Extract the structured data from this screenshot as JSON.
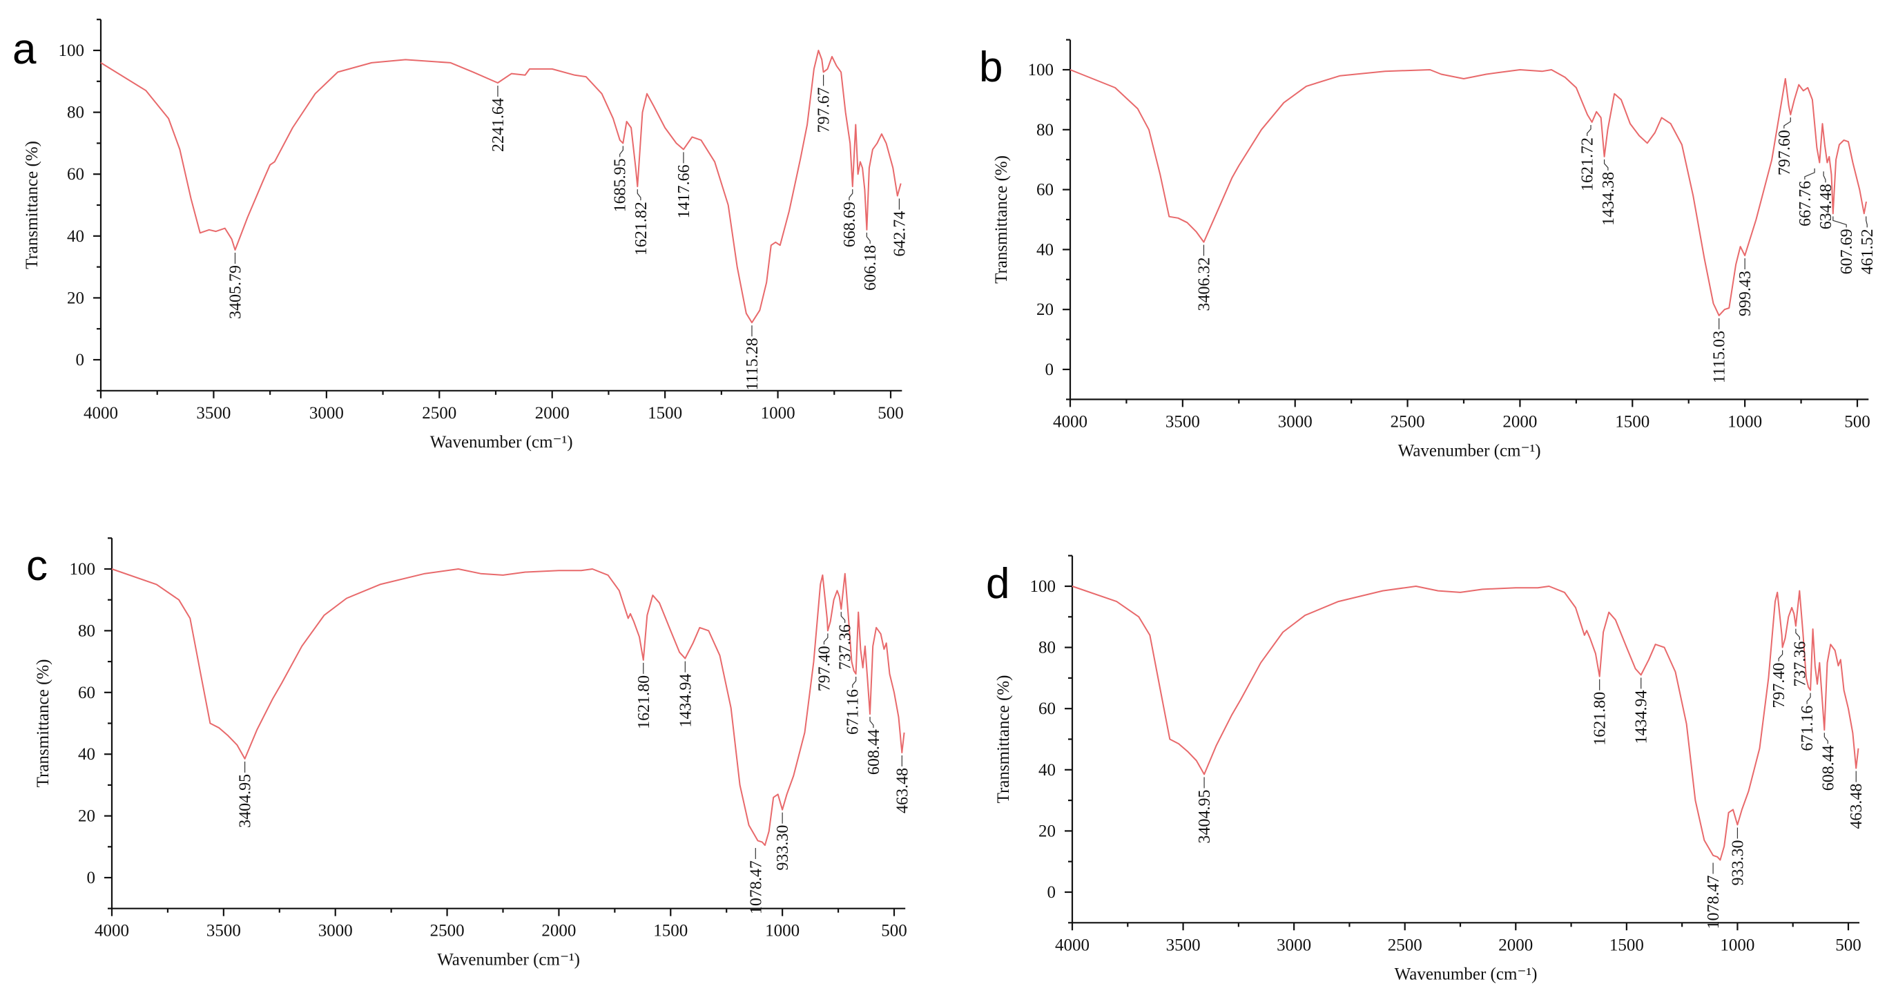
{
  "style": {
    "line_color": "#e8696b",
    "text_color": "#111111"
  },
  "chart_data": [
    {
      "type": "line",
      "panel": "a",
      "xlabel": "Wavenumber (cm⁻¹)",
      "ylabel": "Transmittance (%)",
      "xlim": [
        4000,
        450
      ],
      "ylim": [
        -10,
        110
      ],
      "xticks": [
        4000,
        3500,
        3000,
        2500,
        2000,
        1500,
        1000,
        500
      ],
      "yticks": [
        0,
        20,
        40,
        60,
        80,
        100
      ],
      "grid": false,
      "series": [
        {
          "name": "a",
          "x": [
            4000,
            3800,
            3700,
            3650,
            3600,
            3560,
            3520,
            3490,
            3450,
            3420,
            3405,
            3350,
            3280,
            3250,
            3230,
            3150,
            3050,
            2950,
            2800,
            2650,
            2450,
            2350,
            2241,
            2180,
            2120,
            2100,
            2000,
            1900,
            1850,
            1780,
            1730,
            1700,
            1686,
            1670,
            1650,
            1630,
            1622,
            1600,
            1580,
            1550,
            1500,
            1450,
            1418,
            1380,
            1340,
            1280,
            1220,
            1180,
            1140,
            1115,
            1080,
            1050,
            1030,
            1010,
            990,
            950,
            900,
            870,
            840,
            820,
            805,
            798,
            780,
            760,
            740,
            720,
            700,
            680,
            669,
            655,
            645,
            635,
            625,
            615,
            606,
            595,
            580,
            560,
            540,
            520,
            490,
            470,
            455
          ],
          "y": [
            96,
            87,
            78,
            68,
            52,
            41,
            42,
            41.5,
            42.5,
            39,
            35.5,
            46,
            58,
            63,
            64,
            75,
            86,
            93,
            96,
            97,
            96,
            93,
            89.5,
            92.5,
            92,
            94,
            94,
            92,
            91.5,
            86,
            78,
            71,
            70,
            77,
            75,
            62,
            56,
            80,
            86,
            82,
            75,
            70,
            68,
            72,
            71,
            64,
            50,
            30,
            15,
            12,
            16,
            25,
            37,
            38,
            37,
            48,
            65,
            76,
            94,
            100,
            97,
            93,
            94,
            98,
            95,
            93,
            80,
            70,
            56,
            76,
            60,
            64,
            62,
            55,
            42,
            62,
            68,
            70,
            73,
            70,
            62,
            53,
            57
          ]
        }
      ],
      "annotations": [
        {
          "label": "3405.79",
          "x": 3405,
          "y": 35.5
        },
        {
          "label": "2241.64",
          "x": 2241,
          "y": 89.5
        },
        {
          "label": "1685.95",
          "x": 1686,
          "y": 70
        },
        {
          "label": "1621.82",
          "x": 1622,
          "y": 56
        },
        {
          "label": "1417.66",
          "x": 1418,
          "y": 68
        },
        {
          "label": "1115.28",
          "x": 1115,
          "y": 12
        },
        {
          "label": "797.67",
          "x": 798,
          "y": 93
        },
        {
          "label": "668.69",
          "x": 669,
          "y": 56
        },
        {
          "label": "606.18",
          "x": 606,
          "y": 42
        },
        {
          "label": "642.74",
          "x": 462,
          "y": 53
        }
      ]
    },
    {
      "type": "line",
      "panel": "b",
      "xlabel": "Wavenumber (cm⁻¹)",
      "ylabel": "Transmittance (%)",
      "xlim": [
        4000,
        450
      ],
      "ylim": [
        -10,
        110
      ],
      "xticks": [
        4000,
        3500,
        3000,
        2500,
        2000,
        1500,
        1000,
        500
      ],
      "yticks": [
        0,
        20,
        40,
        60,
        80,
        100
      ],
      "grid": false,
      "series": [
        {
          "name": "b",
          "x": [
            4000,
            3800,
            3700,
            3650,
            3600,
            3560,
            3520,
            3480,
            3440,
            3406,
            3350,
            3280,
            3250,
            3150,
            3050,
            2950,
            2800,
            2600,
            2400,
            2350,
            2250,
            2150,
            2100,
            2000,
            1900,
            1860,
            1800,
            1750,
            1700,
            1680,
            1660,
            1640,
            1625,
            1610,
            1580,
            1550,
            1510,
            1470,
            1434,
            1400,
            1370,
            1330,
            1280,
            1230,
            1180,
            1140,
            1115,
            1090,
            1070,
            1040,
            1020,
            1000,
            950,
            880,
            840,
            820,
            805,
            797,
            780,
            760,
            740,
            720,
            700,
            680,
            668,
            655,
            645,
            634,
            625,
            615,
            608,
            595,
            580,
            560,
            540,
            520,
            490,
            470,
            460
          ],
          "y": [
            100,
            94,
            87,
            80,
            65,
            51,
            50.5,
            49,
            46,
            42.5,
            52,
            64,
            68,
            80,
            89,
            94.5,
            98,
            99.5,
            100,
            98.5,
            97,
            98.5,
            99,
            100,
            99.5,
            100,
            97.5,
            94,
            85,
            82.5,
            86,
            84,
            71,
            80,
            92,
            90,
            82,
            78,
            75.5,
            79,
            84,
            82,
            75,
            58,
            37,
            22,
            18,
            20,
            20.5,
            35,
            41,
            38,
            50,
            70,
            88,
            97,
            88,
            85,
            90,
            95,
            93,
            94,
            90,
            74,
            69,
            82,
            75,
            69,
            71,
            65,
            52,
            70,
            75,
            76.5,
            76,
            69,
            60,
            52,
            56
          ]
        }
      ],
      "annotations": [
        {
          "label": "3406.32",
          "x": 3406,
          "y": 42.5
        },
        {
          "label": "1621.72",
          "x": 1685,
          "y": 82.5
        },
        {
          "label": "1434.38",
          "x": 1625,
          "y": 71
        },
        {
          "label": "1115.03",
          "x": 1115,
          "y": 18
        },
        {
          "label": "999.43",
          "x": 1000,
          "y": 38
        },
        {
          "label": "797.60",
          "x": 797,
          "y": 85
        },
        {
          "label": "667.76",
          "x": 690,
          "y": 68
        },
        {
          "label": "634.48",
          "x": 650,
          "y": 67
        },
        {
          "label": "607.69",
          "x": 608,
          "y": 52
        },
        {
          "label": "461.52",
          "x": 461,
          "y": 52
        }
      ]
    },
    {
      "type": "line",
      "panel": "c",
      "xlabel": "Wavenumber (cm⁻¹)",
      "ylabel": "Transmittance (%)",
      "xlim": [
        4000,
        450
      ],
      "ylim": [
        -10,
        110
      ],
      "xticks": [
        4000,
        3500,
        3000,
        2500,
        2000,
        1500,
        1000,
        500
      ],
      "yticks": [
        0,
        20,
        40,
        60,
        80,
        100
      ],
      "grid": false,
      "series": [
        {
          "name": "c",
          "x": [
            4000,
            3800,
            3700,
            3650,
            3600,
            3560,
            3520,
            3480,
            3440,
            3405,
            3350,
            3280,
            3240,
            3150,
            3050,
            2950,
            2800,
            2600,
            2450,
            2350,
            2250,
            2150,
            2000,
            1900,
            1850,
            1780,
            1730,
            1690,
            1680,
            1665,
            1640,
            1622,
            1605,
            1580,
            1550,
            1500,
            1460,
            1435,
            1400,
            1370,
            1330,
            1280,
            1230,
            1190,
            1150,
            1110,
            1090,
            1078,
            1060,
            1040,
            1020,
            1000,
            980,
            950,
            900,
            860,
            830,
            820,
            800,
            797,
            785,
            770,
            755,
            745,
            737,
            720,
            705,
            690,
            680,
            671,
            660,
            650,
            640,
            630,
            620,
            608,
            595,
            580,
            560,
            545,
            535,
            520,
            500,
            480,
            465,
            455
          ],
          "y": [
            100,
            95,
            90,
            84,
            65,
            50,
            48.5,
            46,
            43,
            38.5,
            48,
            58,
            63,
            75,
            85,
            90.5,
            95,
            98.5,
            100,
            98.5,
            98,
            99,
            99.5,
            99.5,
            100,
            98,
            93,
            84,
            85.5,
            83,
            78,
            70.5,
            85,
            91.5,
            89,
            80,
            73,
            71,
            76,
            81,
            80,
            72,
            55,
            30,
            17,
            12,
            11.5,
            10.5,
            15,
            26,
            27,
            22,
            27,
            33,
            47,
            70,
            95,
            98,
            84,
            80,
            83,
            90,
            93,
            91,
            87,
            98.5,
            85,
            70,
            67,
            66,
            86,
            74,
            68,
            75,
            65,
            53,
            75,
            81,
            79,
            74,
            76,
            66,
            60,
            52,
            40.5,
            47
          ]
        }
      ],
      "annotations": [
        {
          "label": "3404.95",
          "x": 3405,
          "y": 38.5
        },
        {
          "label": "1621.80",
          "x": 1622,
          "y": 70.5
        },
        {
          "label": "1434.94",
          "x": 1435,
          "y": 71
        },
        {
          "label": "1078.47",
          "x": 1120,
          "y": 10.5
        },
        {
          "label": "933.30",
          "x": 1000,
          "y": 22
        },
        {
          "label": "797.40",
          "x": 797,
          "y": 80
        },
        {
          "label": "737.36",
          "x": 737,
          "y": 87
        },
        {
          "label": "671.16",
          "x": 671,
          "y": 66
        },
        {
          "label": "608.44",
          "x": 608,
          "y": 53
        },
        {
          "label": "463.48",
          "x": 465,
          "y": 40.5
        }
      ]
    },
    {
      "type": "line",
      "panel": "d",
      "xlabel": "Wavenumber (cm⁻¹)",
      "ylabel": "Transmittance (%)",
      "xlim": [
        4000,
        450
      ],
      "ylim": [
        -10,
        110
      ],
      "xticks": [
        4000,
        3500,
        3000,
        2500,
        2000,
        1500,
        1000,
        500
      ],
      "yticks": [
        0,
        20,
        40,
        60,
        80,
        100
      ],
      "grid": false,
      "series": [
        {
          "name": "d",
          "x": [
            4000,
            3800,
            3700,
            3650,
            3600,
            3560,
            3520,
            3480,
            3440,
            3405,
            3350,
            3280,
            3240,
            3150,
            3050,
            2950,
            2800,
            2600,
            2450,
            2350,
            2250,
            2150,
            2000,
            1900,
            1850,
            1780,
            1730,
            1690,
            1680,
            1665,
            1640,
            1622,
            1605,
            1580,
            1550,
            1500,
            1460,
            1435,
            1400,
            1370,
            1330,
            1280,
            1230,
            1190,
            1150,
            1110,
            1090,
            1078,
            1060,
            1040,
            1020,
            1000,
            980,
            950,
            900,
            860,
            830,
            820,
            800,
            797,
            785,
            770,
            755,
            745,
            737,
            720,
            705,
            690,
            680,
            671,
            660,
            650,
            640,
            630,
            620,
            608,
            595,
            580,
            560,
            545,
            535,
            520,
            500,
            480,
            465,
            455
          ],
          "y": [
            100,
            95,
            90,
            84,
            65,
            50,
            48.5,
            46,
            43,
            38.5,
            48,
            58,
            63,
            75,
            85,
            90.5,
            95,
            98.5,
            100,
            98.5,
            98,
            99,
            99.5,
            99.5,
            100,
            98,
            93,
            84,
            85.5,
            83,
            78,
            70.5,
            85,
            91.5,
            89,
            80,
            73,
            71,
            76,
            81,
            80,
            72,
            55,
            30,
            17,
            12,
            11.5,
            10.5,
            15,
            26,
            27,
            22,
            27,
            33,
            47,
            70,
            95,
            98,
            84,
            80,
            83,
            90,
            93,
            91,
            87,
            98.5,
            85,
            70,
            67,
            66,
            86,
            74,
            68,
            75,
            65,
            53,
            75,
            81,
            79,
            74,
            76,
            66,
            60,
            52,
            40.5,
            47
          ]
        }
      ],
      "annotations": [
        {
          "label": "3404.95",
          "x": 3405,
          "y": 38.5
        },
        {
          "label": "1621.80",
          "x": 1622,
          "y": 70.5
        },
        {
          "label": "1434.94",
          "x": 1435,
          "y": 71
        },
        {
          "label": "1078.47",
          "x": 1110,
          "y": 10.5
        },
        {
          "label": "933.30",
          "x": 1000,
          "y": 22
        },
        {
          "label": "797.40",
          "x": 797,
          "y": 80
        },
        {
          "label": "737.36",
          "x": 737,
          "y": 87
        },
        {
          "label": "671.16",
          "x": 671,
          "y": 66
        },
        {
          "label": "608.44",
          "x": 608,
          "y": 53
        },
        {
          "label": "463.48",
          "x": 465,
          "y": 40.5
        }
      ]
    }
  ]
}
